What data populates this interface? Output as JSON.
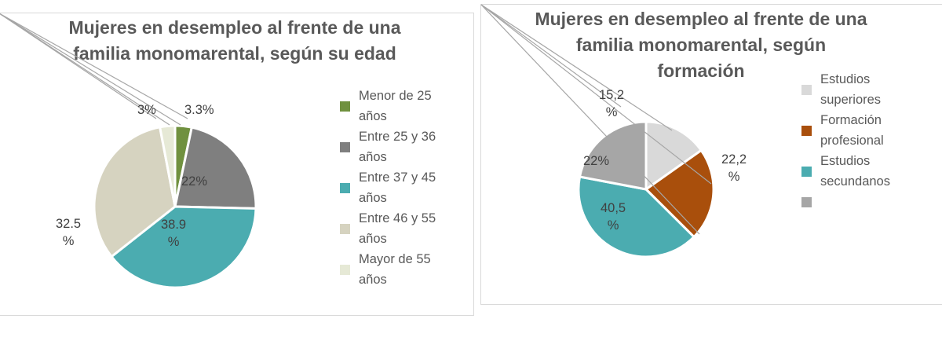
{
  "chart_data": [
    {
      "type": "pie",
      "title": "Mujeres en desempleo al frente de una familia monomarental, según su edad",
      "categories": [
        "Menor de 25 años",
        "Entre 25 y 36 años",
        "Entre 37 y 45 años",
        "Entre 46 y 55 años",
        "Mayor de 55 años"
      ],
      "values": [
        3.3,
        22,
        38.9,
        32.5,
        3
      ],
      "unit": "%",
      "data_labels": [
        "3.3%",
        "22%",
        "38.9\n%",
        "32.5\n%",
        "3%"
      ],
      "colors": [
        "#70913f",
        "#7f7f7f",
        "#4bacb0",
        "#d6d3c0",
        "#e6e9d6"
      ],
      "legend_position": "right",
      "legend": [
        "Menor de 25\naños",
        "Entre 25 y 36\naños",
        "Entre 37 y 45\naños",
        "Entre 46 y 55\naños",
        "Mayor de 55\naños"
      ]
    },
    {
      "type": "pie",
      "title": "Mujeres en desempleo al frente de una familia monomarental, según formación",
      "categories": [
        "Estudios superiores",
        "Formación profesional",
        "Estudios secundarios",
        ""
      ],
      "values": [
        15.2,
        22.2,
        40.5,
        22
      ],
      "unit": "%",
      "data_labels": [
        "15,2\n%",
        "22,2\n%",
        "40,5\n%",
        "22%"
      ],
      "colors": [
        "#d9d9d9",
        "#a94f0c",
        "#4bacb0",
        "#a6a6a6"
      ],
      "legend_position": "right",
      "legend": [
        "Estudios\nsuperiores",
        "Formación\nprofesional",
        "Estudios\nsecundanos",
        ""
      ]
    }
  ],
  "left": {
    "title": "Mujeres en desempleo al frente de una familia monomarental, según su edad"
  },
  "right": {
    "title": "Mujeres en desempleo al frente de una familia monomarental, según formación"
  }
}
